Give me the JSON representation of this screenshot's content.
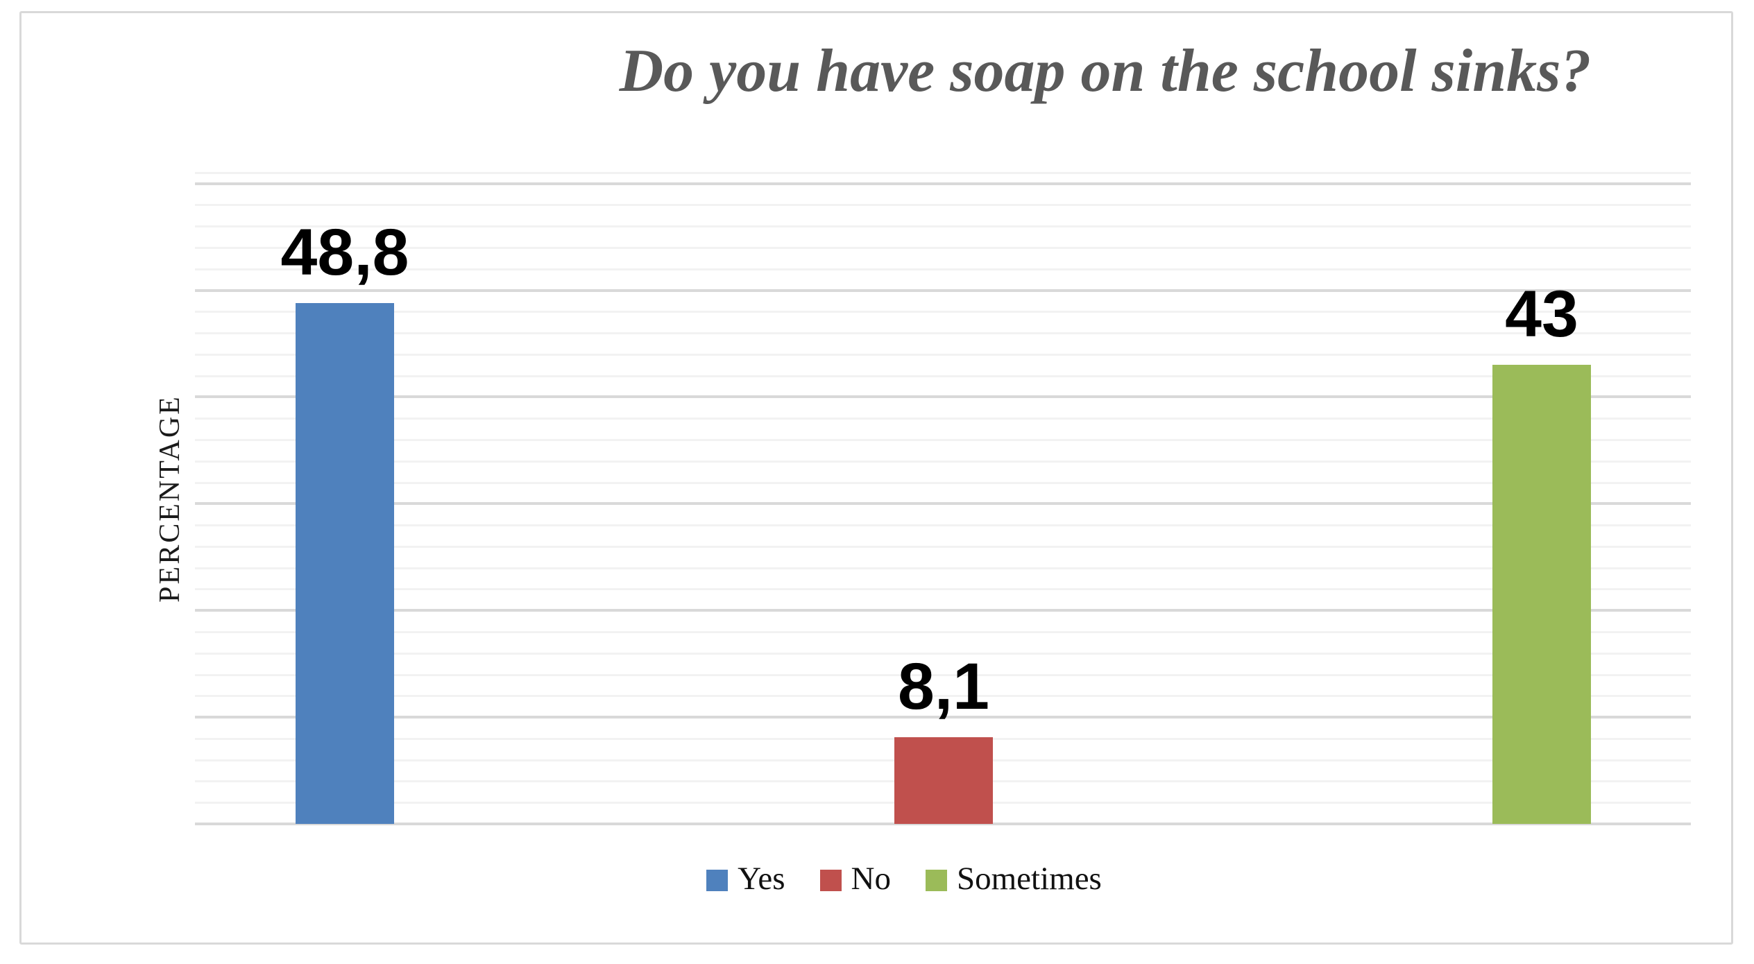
{
  "chart_data": {
    "type": "bar",
    "title": "Do you have soap on the school sinks?",
    "xlabel": "",
    "ylabel": "PERCENTAGE",
    "categories": [
      "Yes",
      "No",
      "Sometimes"
    ],
    "values": [
      48.8,
      8.1,
      43
    ],
    "data_labels": [
      "48,8",
      "8,1",
      "43"
    ],
    "series_colors": [
      "#4F81BD",
      "#C0504D",
      "#9BBB59"
    ],
    "ylim": [
      0,
      60
    ],
    "y_major_unit": 10,
    "y_minor_unit": 2,
    "grid": true,
    "y_tick_labels_visible": false,
    "x_tick_labels_visible": false,
    "legend_position": "bottom",
    "legend": [
      {
        "label": "Yes",
        "color": "#4F81BD"
      },
      {
        "label": "No",
        "color": "#C0504D"
      },
      {
        "label": "Sometimes",
        "color": "#9BBB59"
      }
    ]
  },
  "colors": {
    "frame_border": "#D9D9D9",
    "grid_major": "#D9D9D9",
    "grid_minor": "#F2F2F2",
    "title_text": "#595959",
    "data_label_text": "#000000",
    "background": "#FFFFFF"
  }
}
